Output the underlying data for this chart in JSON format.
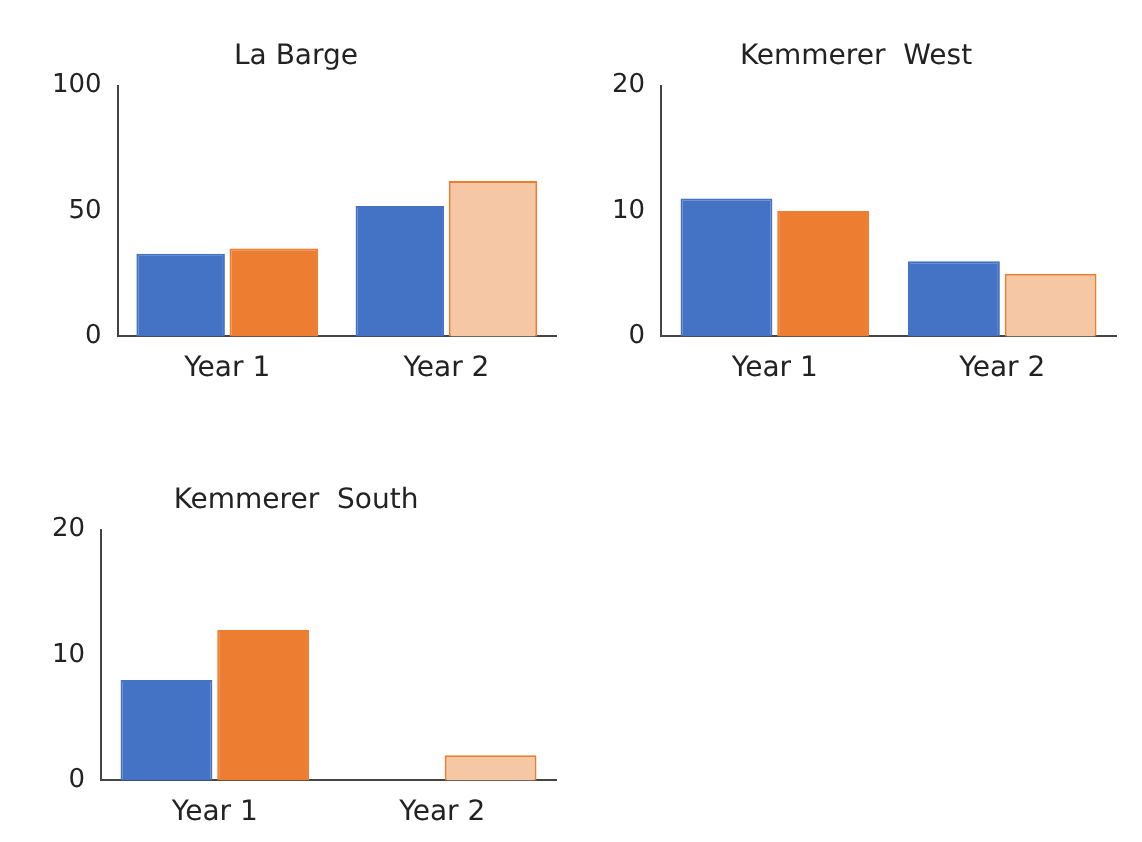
{
  "chart_data": [
    {
      "type": "bar",
      "title": "La Barge",
      "categories": [
        "Year 1",
        "Year 2"
      ],
      "series": [
        {
          "color": "#4472c4",
          "values": [
            33,
            52
          ]
        },
        {
          "color": "#ed7d31",
          "colors": [
            "#ed7d31",
            "#f5c7a5"
          ],
          "values": [
            35,
            62
          ]
        }
      ],
      "ylim": [
        0,
        100
      ],
      "yticks": [
        0,
        50,
        100
      ],
      "grid": false,
      "legend": false
    },
    {
      "type": "bar",
      "title": "Kemmerer  West",
      "categories": [
        "Year 1",
        "Year 2"
      ],
      "series": [
        {
          "color": "#4472c4",
          "values": [
            11,
            6
          ]
        },
        {
          "color": "#ed7d31",
          "colors": [
            "#ed7d31",
            "#f5c7a5"
          ],
          "values": [
            10,
            5
          ]
        }
      ],
      "ylim": [
        0,
        20
      ],
      "yticks": [
        0,
        10,
        20
      ],
      "grid": false,
      "legend": false
    },
    {
      "type": "bar",
      "title": "Kemmerer  South",
      "categories": [
        "Year 1",
        "Year 2"
      ],
      "series": [
        {
          "color": "#4472c4",
          "values": [
            8,
            0
          ]
        },
        {
          "color": "#ed7d31",
          "colors": [
            "#ed7d31",
            "#f5c7a5"
          ],
          "values": [
            12,
            2
          ]
        }
      ],
      "ylim": [
        0,
        20
      ],
      "yticks": [
        0,
        10,
        20
      ],
      "grid": false,
      "legend": false
    }
  ]
}
